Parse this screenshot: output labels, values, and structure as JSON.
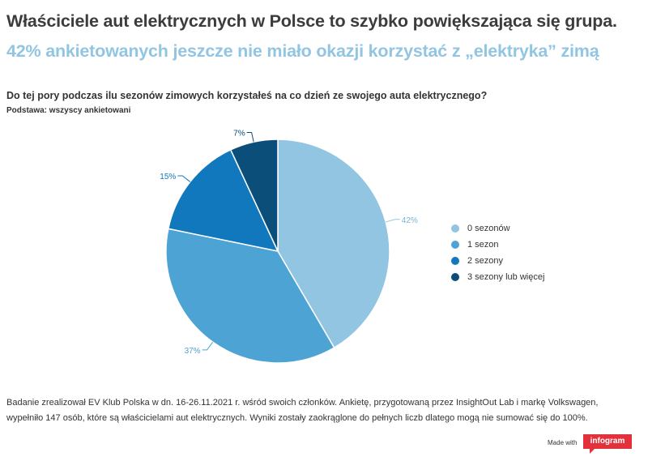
{
  "header": {
    "title": "Właściciele aut elektrycznych w Polsce to szybko powiększająca się grupa.",
    "subtitle": "42% ankietowanych jeszcze nie miało okazji korzystać z „elektryka” zimą",
    "question": "Do tej pory podczas ilu sezonów zimowych korzystałeś na co dzień ze swojego auta elektrycznego?",
    "basis": "Podstawa: wszyscy ankietowani"
  },
  "chart_data": {
    "type": "pie",
    "categories": [
      "0 sezonów",
      "1 sezon",
      "2 sezony",
      "3 sezony lub więcej"
    ],
    "values": [
      42,
      37,
      15,
      7
    ],
    "data_labels": [
      "42%",
      "37%",
      "15%",
      "7%"
    ],
    "colors": [
      "#92c5e2",
      "#4da3d4",
      "#1178bd",
      "#0b4e7a"
    ],
    "legend_position": "right"
  },
  "footer": {
    "note": "Badanie zrealizował EV Klub Polska w dn. 16-26.11.2021 r. wśród swoich członków. Ankietę, przygotowaną przez InsightOut Lab i markę Volkswagen, wypełniło 147 osób, które są właścicielami aut elektrycznych. Wyniki zostały zaokrąglone do pełnych liczb dlatego mogą nie sumować się do 100%.",
    "made_with": "Made with",
    "brand": "infogram"
  },
  "colors": {
    "title": "#3c3c3c",
    "subtitle": "#92c5e2",
    "brand": "#e2313a"
  }
}
